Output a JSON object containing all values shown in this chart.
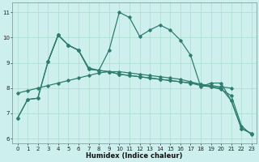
{
  "title": "",
  "xlabel": "Humidex (Indice chaleur)",
  "bg_color": "#cdf0ee",
  "grid_color": "#aaddcc",
  "line_color": "#2e7d6e",
  "xlim": [
    -0.5,
    23.5
  ],
  "ylim": [
    5.8,
    11.4
  ],
  "xticks": [
    0,
    1,
    2,
    3,
    4,
    5,
    6,
    7,
    8,
    9,
    10,
    11,
    12,
    13,
    14,
    15,
    16,
    17,
    18,
    19,
    20,
    21,
    22,
    23
  ],
  "yticks": [
    6,
    7,
    8,
    9,
    10,
    11
  ],
  "line1_x": [
    0,
    1,
    2,
    3,
    4,
    5,
    6,
    7,
    8,
    9,
    10,
    11,
    12,
    13,
    14,
    15,
    16,
    17,
    18,
    19,
    20,
    21,
    22,
    23
  ],
  "line1_y": [
    6.8,
    7.55,
    7.6,
    9.05,
    10.1,
    9.7,
    9.5,
    8.8,
    8.7,
    9.5,
    11.0,
    10.8,
    10.05,
    10.3,
    10.5,
    10.3,
    9.9,
    9.3,
    8.05,
    8.2,
    8.2,
    7.5,
    6.4,
    6.2
  ],
  "line2_x": [
    0,
    1,
    2,
    3,
    4,
    5,
    6,
    7,
    8,
    9,
    10,
    11,
    12,
    13,
    14,
    15,
    16,
    17,
    18,
    19,
    20,
    21,
    22,
    23
  ],
  "line2_y": [
    6.8,
    7.55,
    7.6,
    9.05,
    10.1,
    9.7,
    9.5,
    8.75,
    8.7,
    8.65,
    8.55,
    8.5,
    8.45,
    8.4,
    8.35,
    8.3,
    8.25,
    8.2,
    8.1,
    8.05,
    8.0,
    7.5,
    6.4,
    6.2
  ],
  "line3_x": [
    3,
    4,
    5,
    6,
    7,
    8,
    9,
    10,
    11,
    12,
    13,
    14,
    15,
    16,
    17,
    18,
    19,
    20,
    21
  ],
  "line3_y": [
    9.05,
    10.1,
    9.7,
    9.5,
    8.75,
    8.7,
    8.65,
    8.55,
    8.5,
    8.45,
    8.4,
    8.35,
    8.3,
    8.25,
    8.2,
    8.15,
    8.1,
    8.05,
    8.0
  ],
  "line4_x": [
    0,
    1,
    2,
    3,
    4,
    5,
    6,
    7,
    8,
    9,
    10,
    11,
    12,
    13,
    14,
    15,
    16,
    17,
    18,
    19,
    20,
    21,
    22,
    23
  ],
  "line4_y": [
    7.8,
    7.9,
    8.0,
    8.1,
    8.2,
    8.3,
    8.4,
    8.5,
    8.6,
    8.65,
    8.65,
    8.6,
    8.55,
    8.5,
    8.45,
    8.4,
    8.35,
    8.25,
    8.15,
    8.05,
    7.95,
    7.7,
    6.5,
    6.15
  ]
}
